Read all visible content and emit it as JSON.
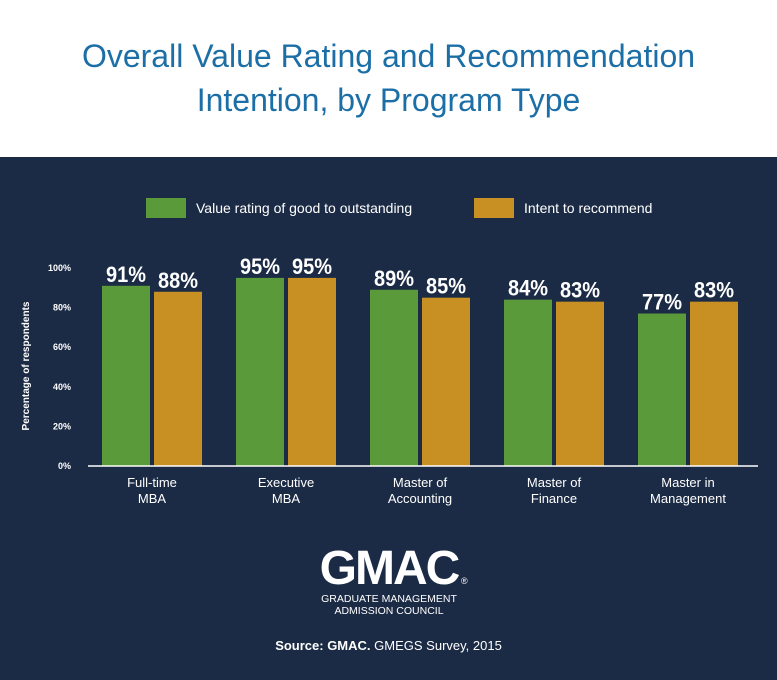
{
  "header": {
    "title_line1": "Overall Value Rating and Recommendation",
    "title_line2": "Intention, by Program Type"
  },
  "colors": {
    "title": "#1c6fa6",
    "background": "#1c2b45",
    "series1": "#5b9a3a",
    "series2": "#c89023",
    "text": "#ffffff"
  },
  "chart_data": {
    "type": "bar",
    "title": "Overall Value Rating and Recommendation Intention, by Program Type",
    "categories": [
      [
        "Full-time",
        "MBA"
      ],
      [
        "Executive",
        "MBA"
      ],
      [
        "Master of",
        "Accounting"
      ],
      [
        "Master of",
        "Finance"
      ],
      [
        "Master in",
        "Management"
      ]
    ],
    "series": [
      {
        "name": "Value rating of good to outstanding",
        "values": [
          91,
          95,
          89,
          84,
          77
        ],
        "labels": [
          "91%",
          "95%",
          "89%",
          "84%",
          "77%"
        ]
      },
      {
        "name": "Intent to recommend",
        "values": [
          88,
          95,
          85,
          83,
          83
        ],
        "labels": [
          "88%",
          "95%",
          "85%",
          "83%",
          "83%"
        ]
      }
    ],
    "ylabel": "Percentage of respondents",
    "ylim": [
      0,
      100
    ],
    "yticks": [
      "0%",
      "20%",
      "40%",
      "60%",
      "80%",
      "100%"
    ],
    "legend_position": "top"
  },
  "logo": {
    "wordmark": "GMAC",
    "registered": "®",
    "line1": "GRADUATE MANAGEMENT",
    "line2": "ADMISSION COUNCIL"
  },
  "source": {
    "label": "Source: GMAC.",
    "text": "GMEGS Survey, 2015"
  }
}
